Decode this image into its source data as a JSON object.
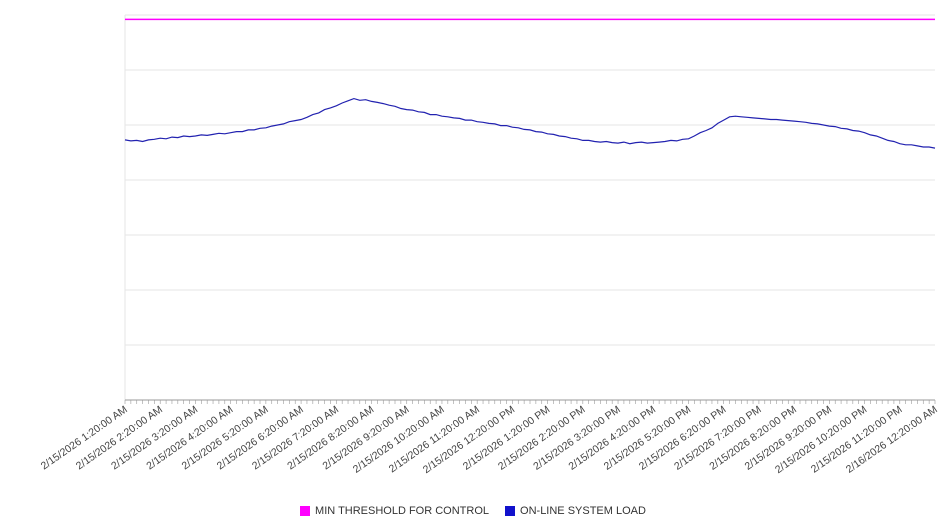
{
  "colors": {
    "background": "#ffffff",
    "grid": "#e6e6e6",
    "axis": "#999999",
    "tick_label": "#444444",
    "threshold": "#ff00ff",
    "load_line": "#2222b0"
  },
  "legend": {
    "items": [
      {
        "label": "MIN THRESHOLD FOR CONTROL",
        "color": "#ff00ff"
      },
      {
        "label": "ON-LINE SYSTEM LOAD",
        "color": "#1111cc"
      }
    ]
  },
  "chart_data": {
    "type": "line",
    "title": "",
    "xlabel": "",
    "ylabel": "",
    "ylim": [
      0,
      70
    ],
    "gridline_step": 10,
    "grid": true,
    "legend_position": "bottom",
    "points_per_label": 6,
    "x_tick_labels": [
      "2/15/2026 1:20:00 AM",
      "2/15/2026 2:20:00 AM",
      "2/15/2026 3:20:00 AM",
      "2/15/2026 4:20:00 AM",
      "2/15/2026 5:20:00 AM",
      "2/15/2026 6:20:00 AM",
      "2/15/2026 7:20:00 AM",
      "2/15/2026 8:20:00 AM",
      "2/15/2026 9:20:00 AM",
      "2/15/2026 10:20:00 AM",
      "2/15/2026 11:20:00 AM",
      "2/15/2026 12:20:00 PM",
      "2/15/2026 1:20:00 PM",
      "2/15/2026 2:20:00 PM",
      "2/15/2026 3:20:00 PM",
      "2/15/2026 4:20:00 PM",
      "2/15/2026 5:20:00 PM",
      "2/15/2026 6:20:00 PM",
      "2/15/2026 7:20:00 PM",
      "2/15/2026 8:20:00 PM",
      "2/15/2026 9:20:00 PM",
      "2/15/2026 10:20:00 PM",
      "2/15/2026 11:20:00 PM",
      "2/16/2026 12:20:00 AM"
    ],
    "series": [
      {
        "name": "MIN THRESHOLD FOR CONTROL",
        "type": "threshold",
        "color": "#ff00ff",
        "value": 69.2
      },
      {
        "name": "ON-LINE SYSTEM LOAD",
        "type": "line",
        "color": "#2222b0",
        "values": [
          47.3,
          47.1,
          47.2,
          47.0,
          47.3,
          47.4,
          47.6,
          47.5,
          47.8,
          47.7,
          48.0,
          47.9,
          48.0,
          48.2,
          48.1,
          48.3,
          48.5,
          48.4,
          48.6,
          48.8,
          48.8,
          49.1,
          49.1,
          49.4,
          49.5,
          49.8,
          50.0,
          50.2,
          50.6,
          50.8,
          51.0,
          51.4,
          51.9,
          52.2,
          52.8,
          53.1,
          53.5,
          54.0,
          54.4,
          54.8,
          54.5,
          54.6,
          54.3,
          54.1,
          53.9,
          53.6,
          53.4,
          53.0,
          52.8,
          52.7,
          52.4,
          52.3,
          51.9,
          51.9,
          51.6,
          51.5,
          51.3,
          51.2,
          50.9,
          50.9,
          50.6,
          50.5,
          50.3,
          50.2,
          49.9,
          49.9,
          49.6,
          49.5,
          49.2,
          49.1,
          48.8,
          48.7,
          48.4,
          48.3,
          48.0,
          47.9,
          47.6,
          47.5,
          47.2,
          47.2,
          47.0,
          46.9,
          47.0,
          46.8,
          46.7,
          46.9,
          46.6,
          46.8,
          46.9,
          46.7,
          46.8,
          46.9,
          47.0,
          47.2,
          47.1,
          47.4,
          47.5,
          48.0,
          48.6,
          49.0,
          49.5,
          50.3,
          50.9,
          51.5,
          51.6,
          51.5,
          51.4,
          51.3,
          51.2,
          51.1,
          51.0,
          51.0,
          50.9,
          50.8,
          50.7,
          50.6,
          50.5,
          50.3,
          50.2,
          50.0,
          49.8,
          49.7,
          49.4,
          49.3,
          49.0,
          48.9,
          48.6,
          48.2,
          48.0,
          47.6,
          47.2,
          47.0,
          46.6,
          46.4,
          46.4,
          46.2,
          46.0,
          46.0,
          45.8
        ]
      }
    ]
  }
}
